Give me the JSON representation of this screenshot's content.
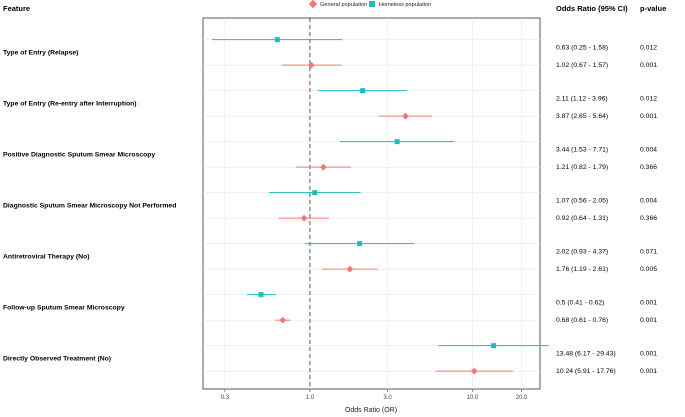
{
  "headers": {
    "feature": "Feature",
    "or": "Odds Ratio (95% CI)",
    "p": "p-value"
  },
  "chart_data": {
    "type": "forest",
    "xlabel": "Odds Ratio (OR)",
    "x_scale": "log",
    "xlim": [
      0.22,
      26
    ],
    "x_ticks": [
      0.3,
      1.0,
      3.0,
      10.0,
      20.0
    ],
    "x_tick_labels": [
      "0.3",
      "1.0",
      "3.0",
      "10.0",
      "20.0"
    ],
    "reference_line": 1.0,
    "legend": {
      "position": "top",
      "items": [
        {
          "name": "General population",
          "color": "#F07A72",
          "marker": "diamond"
        },
        {
          "name": "Homeless population",
          "color": "#18BDBD",
          "marker": "square"
        }
      ]
    },
    "features": [
      "Type of Entry (Relapse)",
      "Type of Entry (Re-entry after Interruption)",
      "Positive Diagnostic Sputum Smear Microscopy",
      "Diagnostic Sputum Smear Microscopy Not Performed",
      "Antiretroviral Therapy (No)",
      "Follow-up Sputum Smear Microscopy",
      "Directly Observed Treatment (No)"
    ],
    "rows": [
      {
        "feature": 0,
        "group": "Homeless population",
        "or": 0.63,
        "lo": 0.25,
        "hi": 1.58,
        "label": "0.63 (0.25 - 1.58)",
        "p": "0.012"
      },
      {
        "feature": 0,
        "group": "General population",
        "or": 1.02,
        "lo": 0.67,
        "hi": 1.57,
        "label": "1.02 (0.67 - 1.57)",
        "p": "0.001"
      },
      {
        "feature": 1,
        "group": "Homeless population",
        "or": 2.11,
        "lo": 1.12,
        "hi": 3.96,
        "label": "2.11 (1.12 - 3.96)",
        "p": "0.012"
      },
      {
        "feature": 1,
        "group": "General population",
        "or": 3.87,
        "lo": 2.65,
        "hi": 5.64,
        "label": "3.87 (2.65 - 5.64)",
        "p": "0.001"
      },
      {
        "feature": 2,
        "group": "Homeless population",
        "or": 3.44,
        "lo": 1.53,
        "hi": 7.71,
        "label": "3.44 (1.53 - 7.71)",
        "p": "0.004"
      },
      {
        "feature": 2,
        "group": "General population",
        "or": 1.21,
        "lo": 0.82,
        "hi": 1.79,
        "label": "1.21 (0.82 - 1.79)",
        "p": "0.366"
      },
      {
        "feature": 3,
        "group": "Homeless population",
        "or": 1.07,
        "lo": 0.56,
        "hi": 2.05,
        "label": "1.07 (0.56 - 2.05)",
        "p": "0.004"
      },
      {
        "feature": 3,
        "group": "General population",
        "or": 0.92,
        "lo": 0.64,
        "hi": 1.31,
        "label": "0.92 (0.64 - 1.31)",
        "p": "0.366"
      },
      {
        "feature": 4,
        "group": "Homeless population",
        "or": 2.02,
        "lo": 0.93,
        "hi": 4.37,
        "label": "2.02 (0.93 - 4.37)",
        "p": "0.071"
      },
      {
        "feature": 4,
        "group": "General population",
        "or": 1.76,
        "lo": 1.19,
        "hi": 2.61,
        "label": "1.76 (1.19 - 2.61)",
        "p": "0.005"
      },
      {
        "feature": 5,
        "group": "Homeless population",
        "or": 0.5,
        "lo": 0.41,
        "hi": 0.62,
        "label": "0.5 (0.41 - 0.62)",
        "p": "0.001"
      },
      {
        "feature": 5,
        "group": "General population",
        "or": 0.68,
        "lo": 0.61,
        "hi": 0.76,
        "label": "0.68 (0.61 - 0.76)",
        "p": "0.001"
      },
      {
        "feature": 6,
        "group": "Homeless population",
        "or": 13.48,
        "lo": 6.17,
        "hi": 29.43,
        "label": "13.48 (6.17 - 29.43)",
        "p": "0.001"
      },
      {
        "feature": 6,
        "group": "General population",
        "or": 10.24,
        "lo": 5.91,
        "hi": 17.76,
        "label": "10.24 (5.91 - 17.76)",
        "p": "0.001"
      }
    ]
  }
}
